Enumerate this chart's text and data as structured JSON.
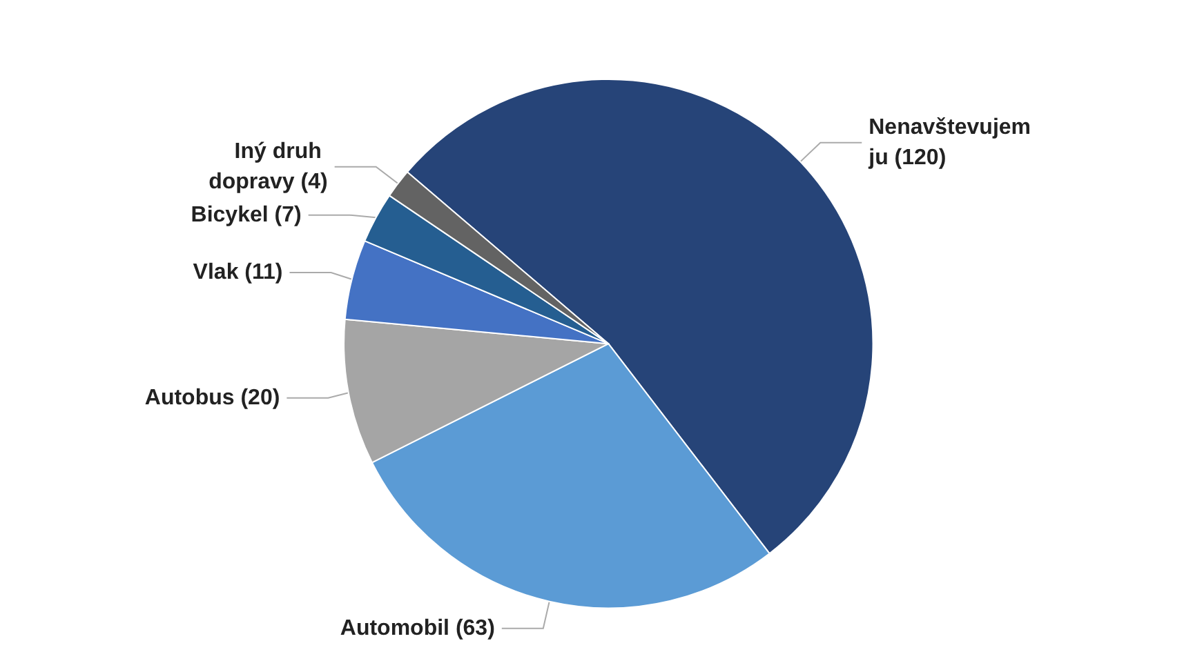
{
  "chart_data": {
    "type": "pie",
    "categories": [
      "Nenavštevujem ju",
      "Automobil",
      "Autobus",
      "Vlak",
      "Bicykel",
      "Iný druh dopravy"
    ],
    "values": [
      120,
      63,
      20,
      11,
      7,
      4
    ],
    "colors": [
      "#264478",
      "#5b9bd5",
      "#a5a5a5",
      "#4472c4",
      "#255e91",
      "#636363"
    ],
    "value_labels": [
      "(120)",
      "(63)",
      "(20)",
      "(11)",
      "(7)",
      "(4)"
    ],
    "legend": false
  }
}
